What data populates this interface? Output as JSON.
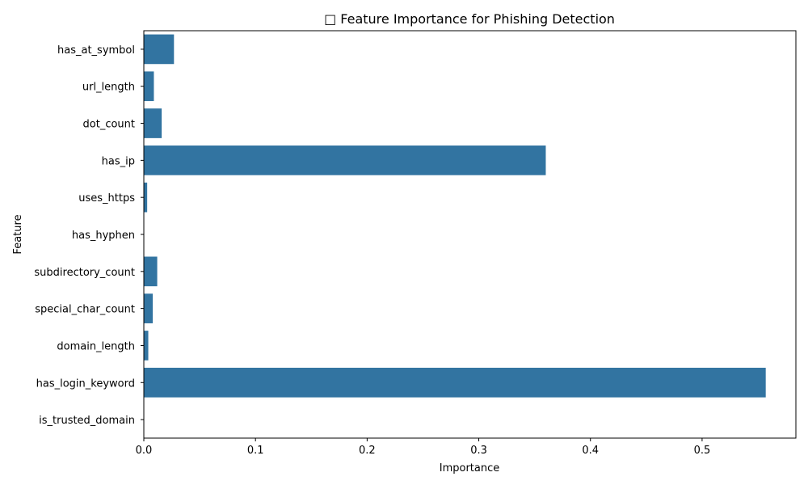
{
  "chart_data": {
    "type": "bar",
    "orientation": "horizontal",
    "title": "□ Feature Importance for Phishing Detection",
    "xlabel": "Importance",
    "ylabel": "Feature",
    "categories": [
      "has_at_symbol",
      "url_length",
      "dot_count",
      "has_ip",
      "uses_https",
      "has_hyphen",
      "subdirectory_count",
      "special_char_count",
      "domain_length",
      "has_login_keyword",
      "is_trusted_domain"
    ],
    "values": [
      0.027,
      0.009,
      0.016,
      0.36,
      0.003,
      0.0,
      0.012,
      0.008,
      0.004,
      0.557,
      0.0
    ],
    "xlim": [
      0,
      0.584
    ],
    "xticks": [
      "0.0",
      "0.1",
      "0.2",
      "0.3",
      "0.4",
      "0.5"
    ],
    "bar_color": "#3274a1",
    "grid": false,
    "legend": false
  }
}
